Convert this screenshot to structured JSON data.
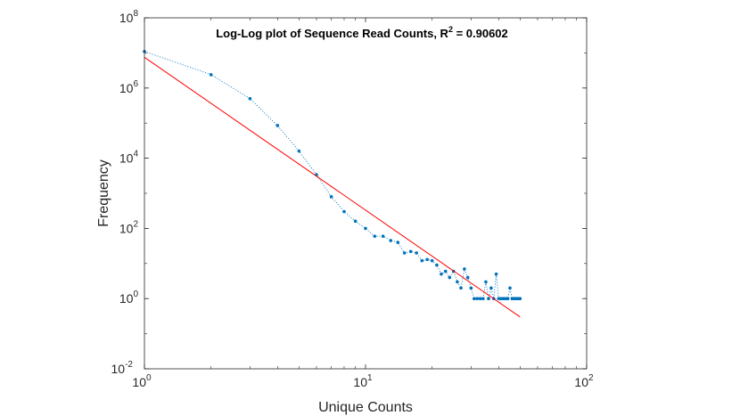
{
  "chart_data": {
    "type": "scatter",
    "title": {
      "prefix": "Log-Log plot of Sequence Read Counts, R",
      "superscript": "2",
      "suffix": " = 0.90602"
    },
    "xlabel": "Unique Counts",
    "ylabel": "Frequency",
    "x_scale": "log",
    "y_scale": "log",
    "xlim": [
      1,
      100
    ],
    "ylim": [
      0.01,
      100000000
    ],
    "x_ticks": [
      {
        "base": "10",
        "exp": "0",
        "value": 1
      },
      {
        "base": "10",
        "exp": "1",
        "value": 10
      },
      {
        "base": "10",
        "exp": "2",
        "value": 100
      }
    ],
    "y_ticks": [
      {
        "base": "10",
        "exp": "-2",
        "value": 0.01
      },
      {
        "base": "10",
        "exp": "0",
        "value": 1
      },
      {
        "base": "10",
        "exp": "2",
        "value": 100
      },
      {
        "base": "10",
        "exp": "4",
        "value": 10000
      },
      {
        "base": "10",
        "exp": "6",
        "value": 1000000
      },
      {
        "base": "10",
        "exp": "8",
        "value": 100000000
      }
    ],
    "grid": false,
    "box": true,
    "series": [
      {
        "style": "dotted-line-with-markers",
        "color": "#0072BD",
        "x": [
          1,
          2,
          3,
          4,
          5,
          6,
          7,
          8,
          9,
          10,
          11,
          12,
          13,
          14,
          15,
          16,
          17,
          18,
          19,
          20,
          21,
          22,
          23,
          24,
          25,
          26,
          27,
          28,
          29,
          30,
          31,
          32,
          33,
          34,
          35,
          36,
          37,
          38,
          39,
          40,
          41,
          42,
          43,
          44,
          45,
          46,
          47,
          48,
          49,
          50
        ],
        "y": [
          11000000,
          2400000,
          500000,
          85000,
          16000,
          3400,
          800,
          300,
          160,
          100,
          60,
          60,
          45,
          40,
          20,
          22,
          20,
          12,
          13,
          12,
          9,
          5,
          6,
          4,
          6,
          3,
          2,
          7,
          4,
          2,
          1,
          1,
          1,
          1,
          3,
          1,
          2,
          1,
          5,
          1,
          1,
          1,
          1,
          1,
          2,
          1,
          1,
          1,
          1,
          1
        ]
      },
      {
        "style": "line",
        "color": "#FF0000",
        "x": [
          1,
          50
        ],
        "y": [
          7500000,
          0.3
        ]
      }
    ]
  }
}
